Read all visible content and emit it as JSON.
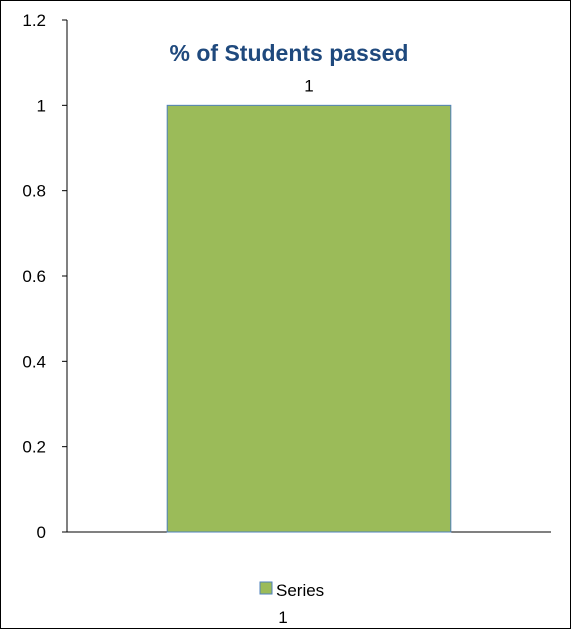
{
  "chart_data": {
    "type": "bar",
    "title": "% of Students passed",
    "categories": [
      ""
    ],
    "series": [
      {
        "name": "Series 1",
        "values": [
          1
        ],
        "color": "#9BBB59",
        "border": "#4F81BD"
      }
    ],
    "data_labels": [
      "1"
    ],
    "ylim": [
      0,
      1.2
    ],
    "yticks": [
      0,
      0.2,
      0.4,
      0.6,
      0.8,
      1,
      1.2
    ],
    "ytick_labels": [
      "0",
      "0.2",
      "0.4",
      "0.6",
      "0.8",
      "1",
      "1.2"
    ],
    "xlabel": "",
    "ylabel": "",
    "grid": false,
    "legend": {
      "position": "bottom",
      "label_line1": "Series",
      "label_line2": "1"
    }
  }
}
